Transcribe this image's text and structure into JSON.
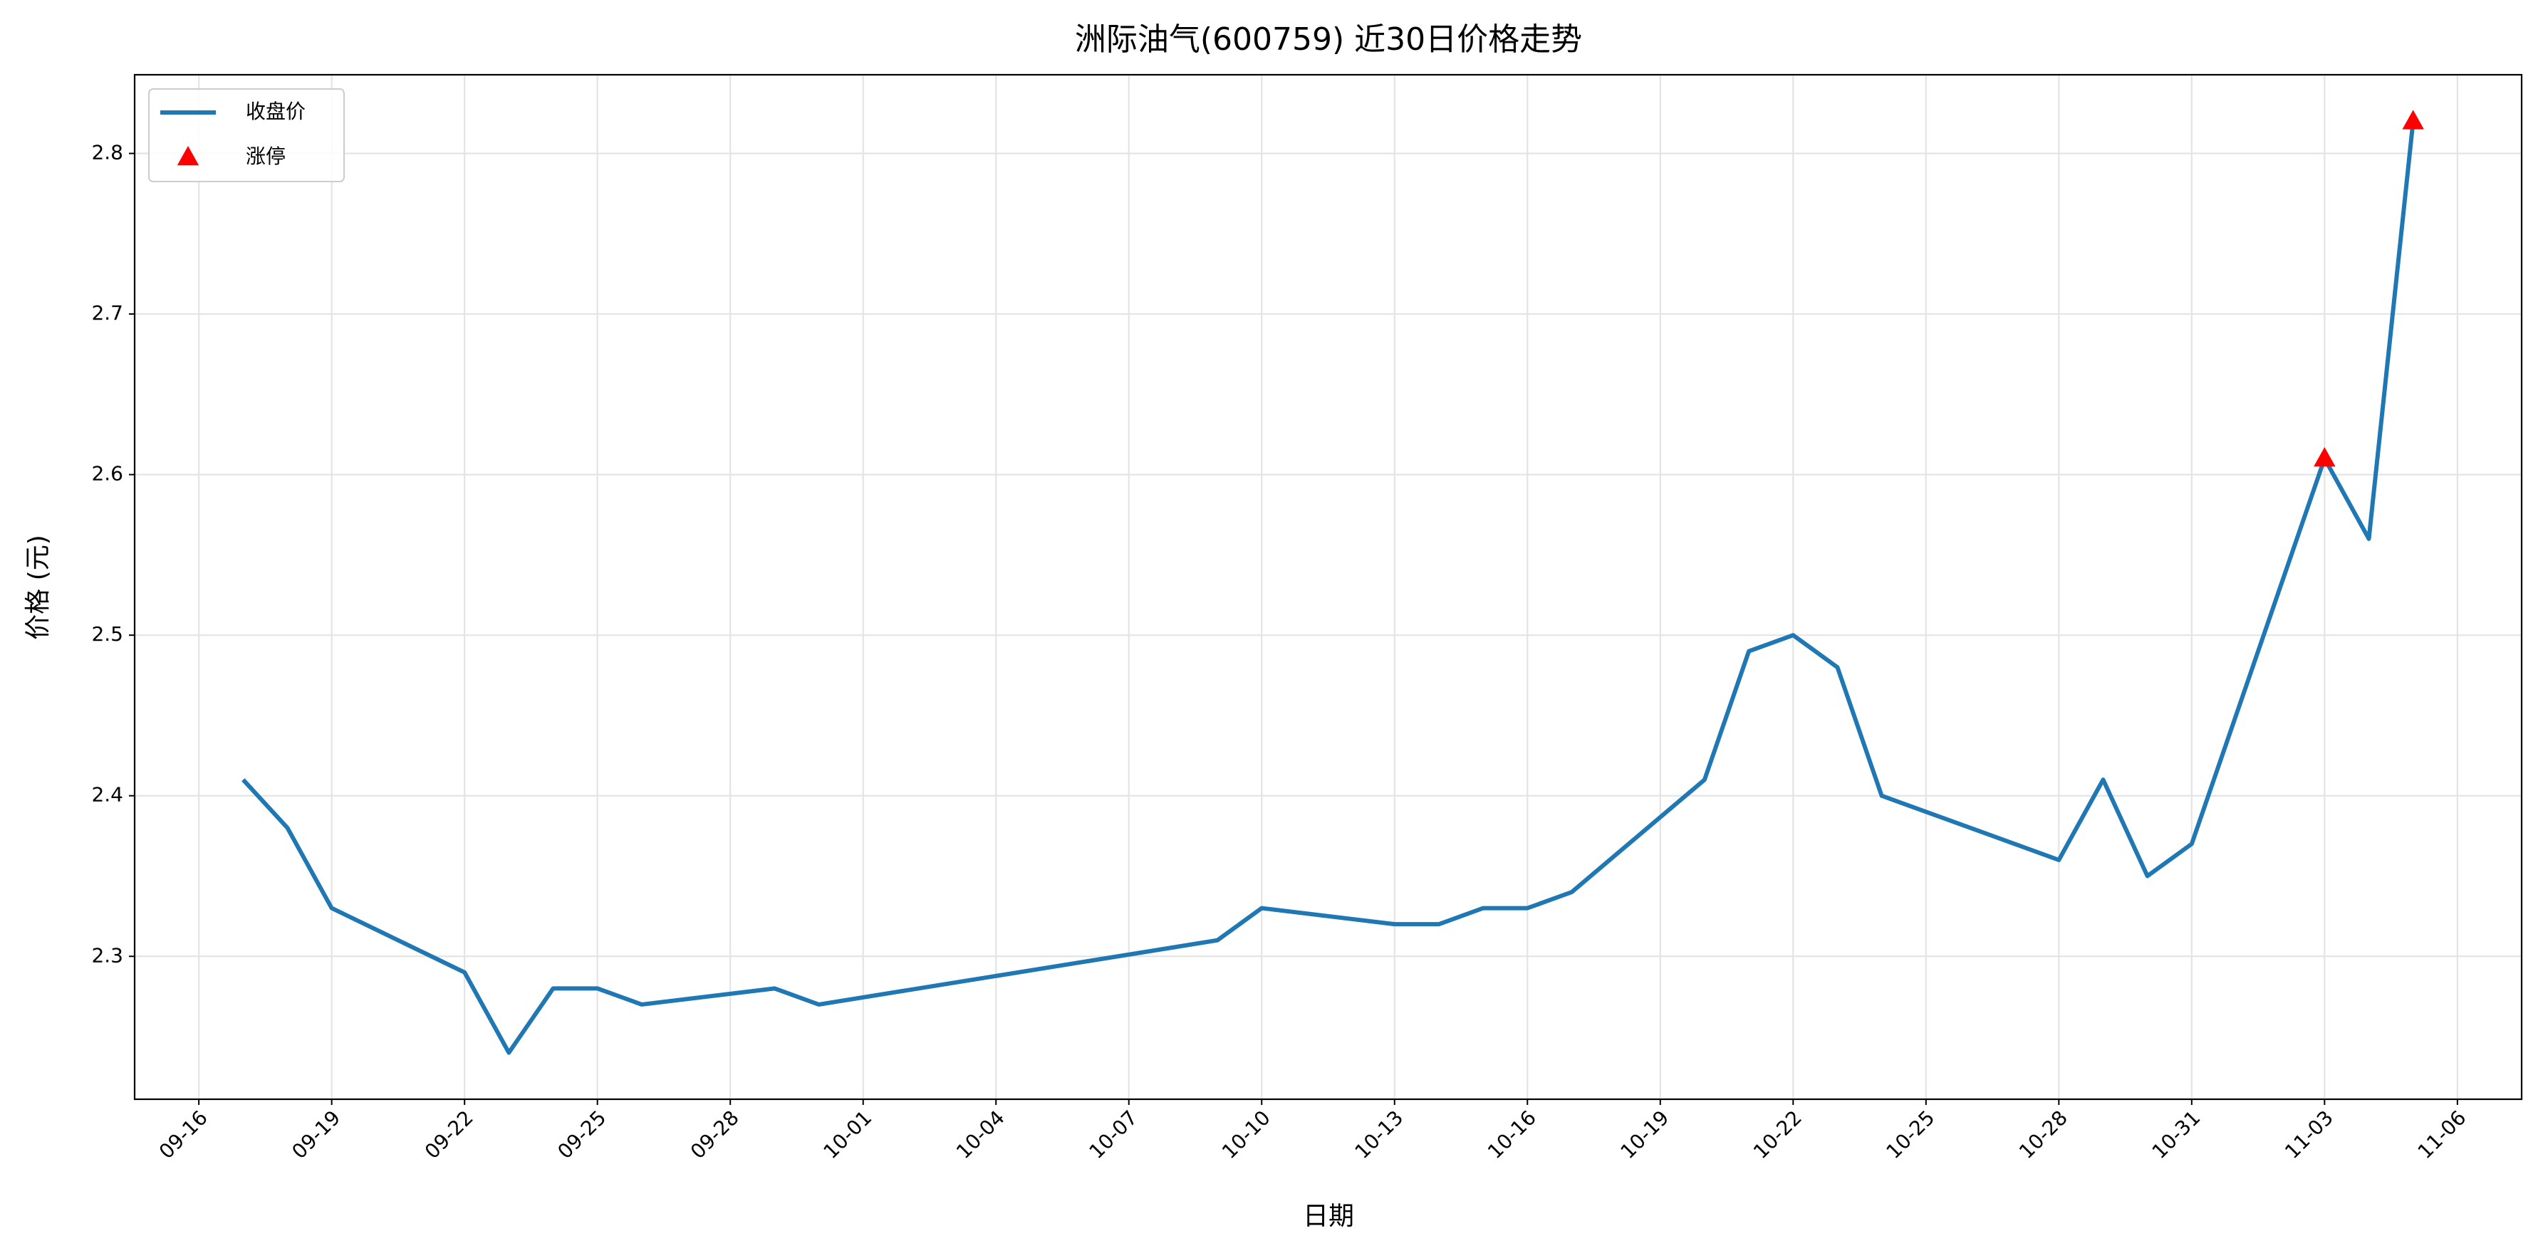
{
  "chart_data": {
    "type": "line",
    "title": "洲际油气(600759) 近30日价格走势",
    "x_label": "日期",
    "y_label": "价格 (元)",
    "series": [
      {
        "name": "收盘价",
        "color": "#1f77b4",
        "type": "line",
        "x": [
          "09-17",
          "09-18",
          "09-19",
          "09-22",
          "09-23",
          "09-24",
          "09-25",
          "09-26",
          "09-29",
          "09-30",
          "10-09",
          "10-10",
          "10-13",
          "10-14",
          "10-15",
          "10-16",
          "10-17",
          "10-20",
          "10-21",
          "10-22",
          "10-23",
          "10-24",
          "10-28",
          "10-29",
          "10-30",
          "10-31",
          "11-03",
          "11-04",
          "11-05"
        ],
        "values": [
          2.41,
          2.38,
          2.33,
          2.29,
          2.24,
          2.28,
          2.28,
          2.27,
          2.28,
          2.27,
          2.31,
          2.33,
          2.32,
          2.32,
          2.33,
          2.33,
          2.34,
          2.41,
          2.49,
          2.5,
          2.48,
          2.4,
          2.36,
          2.41,
          2.35,
          2.37,
          2.61,
          2.56,
          2.82
        ]
      },
      {
        "name": "涨停",
        "color": "#ff0000",
        "type": "scatter",
        "x": [
          "11-03",
          "11-05"
        ],
        "values": [
          2.61,
          2.82
        ]
      }
    ],
    "xticks": [
      "09-16",
      "09-19",
      "09-22",
      "09-25",
      "09-28",
      "10-01",
      "10-04",
      "10-07",
      "10-10",
      "10-13",
      "10-16",
      "10-19",
      "10-22",
      "10-25",
      "10-28",
      "10-31",
      "11-03",
      "11-06"
    ],
    "ylim": [
      2.211,
      2.849
    ],
    "yticks": [
      2.3,
      2.4,
      2.5,
      2.6,
      2.7,
      2.8
    ],
    "grid": true,
    "legend": "upper-left"
  }
}
